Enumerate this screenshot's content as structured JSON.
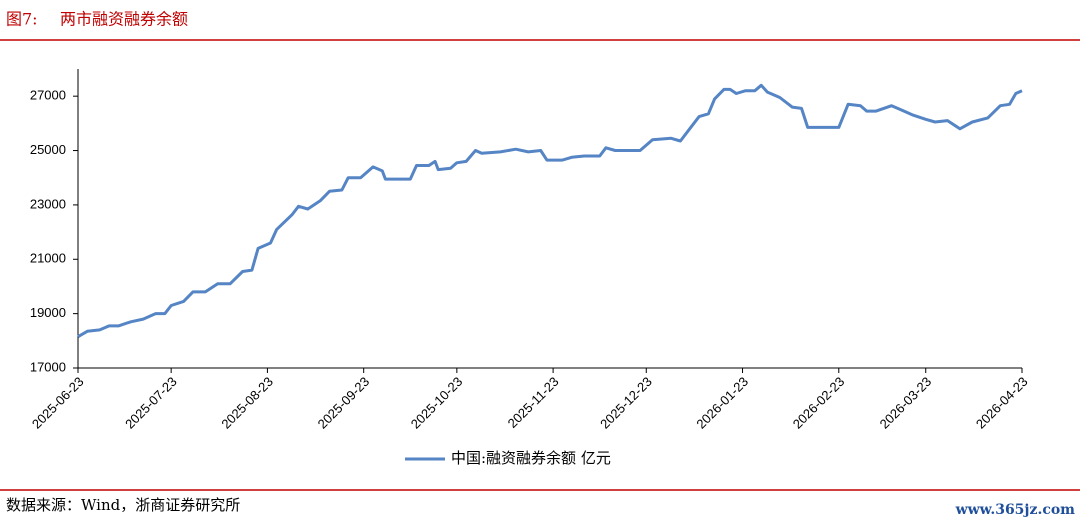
{
  "chart_data": {
    "type": "line",
    "figure_label": "图7:",
    "title": "两市融资融券余额",
    "source": "数据来源：Wind，浙商证券研究所",
    "watermark": "www.365jz.com",
    "x": [
      "2025-06-23",
      "2025-06-26",
      "2025-06-30",
      "2025-07-03",
      "2025-07-06",
      "2025-07-10",
      "2025-07-14",
      "2025-07-18",
      "2025-07-21",
      "2025-07-23",
      "2025-07-27",
      "2025-07-30",
      "2025-08-03",
      "2025-08-07",
      "2025-08-11",
      "2025-08-15",
      "2025-08-18",
      "2025-08-20",
      "2025-08-24",
      "2025-08-26",
      "2025-08-31",
      "2025-09-02",
      "2025-09-05",
      "2025-09-09",
      "2025-09-12",
      "2025-09-16",
      "2025-09-18",
      "2025-09-22",
      "2025-09-25",
      "2025-09-26",
      "2025-09-29",
      "2025-09-30",
      "2025-10-08",
      "2025-10-10",
      "2025-10-14",
      "2025-10-16",
      "2025-10-17",
      "2025-10-21",
      "2025-10-23",
      "2025-10-26",
      "2025-10-29",
      "2025-10-31",
      "2025-11-06",
      "2025-11-11",
      "2025-11-15",
      "2025-11-19",
      "2025-11-21",
      "2025-11-26",
      "2025-11-29",
      "2025-12-03",
      "2025-12-08",
      "2025-12-10",
      "2025-12-13",
      "2025-12-18",
      "2025-12-21",
      "2025-12-25",
      "2025-12-31",
      "2026-01-03",
      "2026-01-06",
      "2026-01-09",
      "2026-01-12",
      "2026-01-14",
      "2026-01-17",
      "2026-01-19",
      "2026-01-21",
      "2026-01-24",
      "2026-01-27",
      "2026-01-29",
      "2026-01-31",
      "2026-02-04",
      "2026-02-08",
      "2026-02-11",
      "2026-02-13",
      "2026-02-23",
      "2026-02-26",
      "2026-03-02",
      "2026-03-04",
      "2026-03-07",
      "2026-03-12",
      "2026-03-15",
      "2026-03-19",
      "2026-03-23",
      "2026-03-26",
      "2026-03-30",
      "2026-04-03",
      "2026-04-07",
      "2026-04-12",
      "2026-04-16",
      "2026-04-19",
      "2026-04-21",
      "2026-04-23"
    ],
    "series": [
      {
        "name": "中国:融资融券余额 亿元",
        "color": "#5585c4",
        "values": [
          18150,
          18350,
          18400,
          18550,
          18550,
          18700,
          18800,
          19000,
          19000,
          19300,
          19450,
          19800,
          19800,
          20100,
          20100,
          20550,
          20600,
          21400,
          21600,
          22100,
          22650,
          22950,
          22850,
          23150,
          23500,
          23550,
          24000,
          24000,
          24300,
          24400,
          24250,
          23950,
          23950,
          24450,
          24450,
          24600,
          24300,
          24350,
          24550,
          24600,
          25000,
          24900,
          24950,
          25050,
          24950,
          25000,
          24650,
          24650,
          24750,
          24800,
          24800,
          25100,
          25000,
          25000,
          25000,
          25400,
          25450,
          25350,
          25800,
          26250,
          26350,
          26900,
          27250,
          27250,
          27100,
          27200,
          27200,
          27400,
          27150,
          26950,
          26600,
          26550,
          25850,
          25850,
          26700,
          26650,
          26450,
          26450,
          26650,
          26500,
          26300,
          26150,
          26050,
          26100,
          25800,
          26050,
          26200,
          26650,
          26700,
          27100,
          27200
        ]
      }
    ],
    "xlim": [
      "2025-06-23",
      "2026-04-23"
    ],
    "xticks": [
      "2025-06-23",
      "2025-07-23",
      "2025-08-23",
      "2025-09-23",
      "2025-10-23",
      "2025-11-23",
      "2025-12-23",
      "2026-01-23",
      "2026-02-23",
      "2026-03-23",
      "2026-04-23"
    ],
    "ylim": [
      17000,
      28000
    ],
    "yticks": [
      17000,
      19000,
      21000,
      23000,
      25000,
      27000
    ]
  }
}
